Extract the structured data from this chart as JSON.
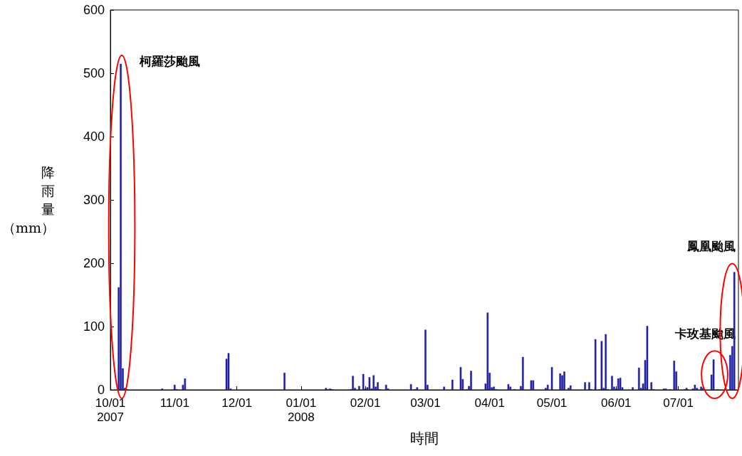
{
  "chart_data": {
    "type": "bar",
    "xlabel": "時間",
    "ylabel": "降雨量（mm）",
    "x": [
      "2007-10-05",
      "2007-10-06",
      "2007-10-07",
      "2007-10-08",
      "2007-10-09",
      "2007-10-26",
      "2007-11-01",
      "2007-11-02",
      "2007-11-05",
      "2007-11-06",
      "2007-11-26",
      "2007-11-27",
      "2007-11-28",
      "2007-12-24",
      "2008-01-13",
      "2008-01-14",
      "2008-01-15",
      "2008-01-16",
      "2008-01-25",
      "2008-01-26",
      "2008-01-27",
      "2008-01-29",
      "2008-01-31",
      "2008-02-01",
      "2008-02-02",
      "2008-02-03",
      "2008-02-04",
      "2008-02-05",
      "2008-02-06",
      "2008-02-07",
      "2008-02-08",
      "2008-02-11",
      "2008-02-12",
      "2008-02-23",
      "2008-02-25",
      "2008-02-26",
      "2008-03-01",
      "2008-03-02",
      "2008-03-10",
      "2008-03-14",
      "2008-03-18",
      "2008-03-19",
      "2008-03-21",
      "2008-03-22",
      "2008-03-23",
      "2008-03-30",
      "2008-03-31",
      "2008-04-01",
      "2008-04-02",
      "2008-04-03",
      "2008-04-04",
      "2008-04-10",
      "2008-04-11",
      "2008-04-13",
      "2008-04-16",
      "2008-04-17",
      "2008-04-21",
      "2008-04-22",
      "2008-04-28",
      "2008-04-29",
      "2008-05-01",
      "2008-05-05",
      "2008-05-06",
      "2008-05-07",
      "2008-05-09",
      "2008-05-10",
      "2008-05-17",
      "2008-05-19",
      "2008-05-20",
      "2008-05-22",
      "2008-05-24",
      "2008-05-25",
      "2008-05-26",
      "2008-05-27",
      "2008-05-28",
      "2008-05-30",
      "2008-05-31",
      "2008-06-01",
      "2008-06-02",
      "2008-06-03",
      "2008-06-04",
      "2008-06-09",
      "2008-06-12",
      "2008-06-13",
      "2008-06-14",
      "2008-06-15",
      "2008-06-16",
      "2008-06-18",
      "2008-06-19",
      "2008-06-24",
      "2008-06-25",
      "2008-06-27",
      "2008-06-29",
      "2008-06-30",
      "2008-07-04",
      "2008-07-05",
      "2008-07-08",
      "2008-07-09",
      "2008-07-10",
      "2008-07-12",
      "2008-07-13",
      "2008-07-17",
      "2008-07-18",
      "2008-07-20",
      "2008-07-26",
      "2008-07-27",
      "2008-07-28"
    ],
    "values": [
      162,
      515,
      34,
      3,
      1,
      2,
      8,
      1,
      8,
      18,
      49,
      58,
      2,
      27,
      3,
      1,
      2,
      1,
      1,
      22,
      3,
      6,
      25,
      2,
      4,
      20,
      2,
      23,
      5,
      12,
      1,
      8,
      2,
      9,
      1,
      4,
      95,
      8,
      5,
      16,
      36,
      17,
      1,
      6,
      30,
      10,
      122,
      27,
      4,
      5,
      1,
      9,
      5,
      1,
      6,
      52,
      15,
      15,
      3,
      8,
      36,
      26,
      23,
      29,
      3,
      7,
      12,
      12,
      1,
      80,
      1,
      77,
      3,
      88,
      1,
      22,
      5,
      2,
      18,
      19,
      4,
      4,
      35,
      3,
      10,
      47,
      101,
      12,
      1,
      2,
      2,
      1,
      46,
      29,
      1,
      3,
      2,
      8,
      3,
      5,
      3,
      24,
      48,
      1,
      55,
      69,
      186
    ],
    "color": "#1f1fa0",
    "xlim": [
      "2007-10-01",
      "2008-07-30"
    ],
    "xticks": [
      {
        "value": "2007-10-01",
        "label": "10/01\n2007"
      },
      {
        "value": "2007-11-01",
        "label": "11/01"
      },
      {
        "value": "2007-12-01",
        "label": "12/01"
      },
      {
        "value": "2008-01-01",
        "label": "01/01\n2008"
      },
      {
        "value": "2008-02-01",
        "label": "02/01"
      },
      {
        "value": "2008-03-01",
        "label": "03/01"
      },
      {
        "value": "2008-04-01",
        "label": "04/01"
      },
      {
        "value": "2008-05-01",
        "label": "05/01"
      },
      {
        "value": "2008-06-01",
        "label": "06/01"
      },
      {
        "value": "2008-07-01",
        "label": "07/01"
      }
    ],
    "ylim": [
      0,
      600
    ],
    "yticks": [
      0,
      100,
      200,
      300,
      400,
      500,
      600
    ],
    "grid": false,
    "annotations": [
      {
        "text": "柯羅莎颱風",
        "x": "2007-10-06",
        "y": 515
      },
      {
        "text": "卡玫基颱風",
        "x": "2008-07-18",
        "y": 48
      },
      {
        "text": "鳳凰颱風",
        "x": "2008-07-28",
        "y": 186
      }
    ]
  }
}
